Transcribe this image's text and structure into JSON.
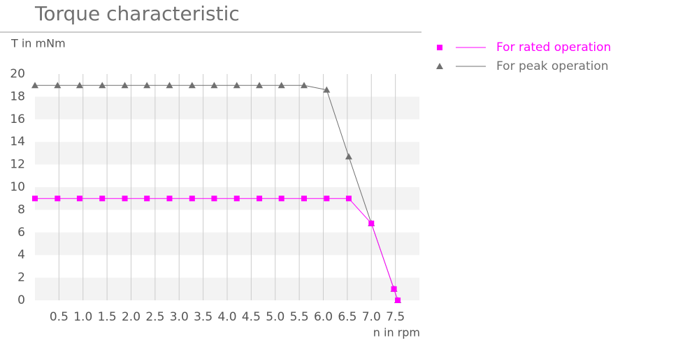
{
  "chart_data": {
    "type": "line",
    "title": "Torque characteristic",
    "ylabel": "T in mNm",
    "xlabel": "n in rpm",
    "x": [
      0,
      0.47,
      0.93,
      1.4,
      1.87,
      2.33,
      2.8,
      3.27,
      3.73,
      4.2,
      4.67,
      5.13,
      5.6,
      6.07,
      6.53,
      7.0,
      7.47,
      7.55
    ],
    "series": [
      {
        "name": "For rated operation",
        "color": "#ff00ff",
        "marker": "square",
        "values": [
          9,
          9,
          9,
          9,
          9,
          9,
          9,
          9,
          9,
          9,
          9,
          9,
          9,
          9,
          9,
          6.8,
          1,
          0
        ]
      },
      {
        "name": "For peak operation",
        "color": "#707070",
        "marker": "triangle",
        "values": [
          19,
          19,
          19,
          19,
          19,
          19,
          19,
          19,
          19,
          19,
          19,
          19,
          19,
          18.6,
          12.7,
          6.8,
          1,
          0
        ]
      }
    ],
    "xlim": [
      0,
      8
    ],
    "xticks": [
      0.5,
      {
        "value": 1,
        "label": "1.0"
      },
      1.5,
      {
        "value": 2,
        "label": "2.0"
      },
      2.5,
      {
        "value": 3,
        "label": "3.0"
      },
      3.5,
      {
        "value": 4,
        "label": "4.0"
      },
      4.5,
      {
        "value": 5,
        "label": "5.0"
      },
      5.5,
      {
        "value": 6,
        "label": "6.0"
      },
      6.5,
      {
        "value": 7,
        "label": "7.0"
      },
      7.5
    ],
    "ylim": [
      0,
      20
    ],
    "yticks": [
      0,
      2,
      4,
      6,
      8,
      10,
      12,
      14,
      16,
      18,
      20
    ],
    "grid": true,
    "banded": true,
    "legend": "top-right"
  }
}
